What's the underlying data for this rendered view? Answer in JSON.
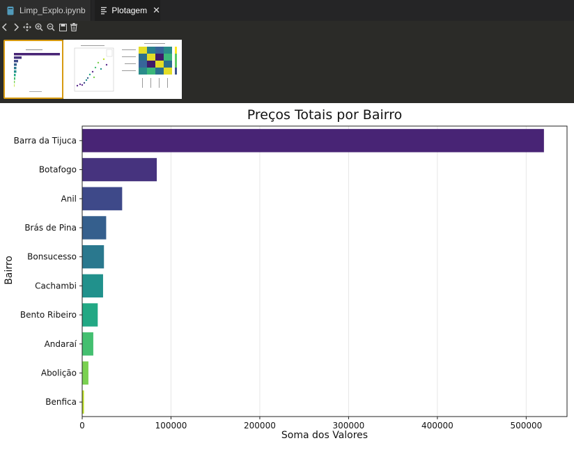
{
  "tabs": [
    {
      "label": "Limp_Explo.ipynb",
      "icon": "notebook-icon",
      "active": false
    },
    {
      "label": "Plotagem",
      "icon": "plot-file-icon",
      "active": true
    }
  ],
  "toolbar": {
    "buttons": [
      "back-icon",
      "forward-icon",
      "pan-icon",
      "zoom-in-icon",
      "zoom-out-icon",
      "save-icon",
      "trash-icon"
    ]
  },
  "thumbnails": [
    {
      "name": "thumb-bar-chart",
      "selected": true
    },
    {
      "name": "thumb-scatter-plot",
      "selected": false
    },
    {
      "name": "thumb-heatmap",
      "selected": false
    }
  ],
  "colors": {
    "selected_border": "#d79a10",
    "editor_bg": "#1e1e1e"
  },
  "chart_data": {
    "type": "bar",
    "orientation": "horizontal",
    "title": "Preços Totais por Bairro",
    "xlabel": "Soma dos Valores",
    "ylabel": "Bairro",
    "categories": [
      "Barra da Tijuca",
      "Botafogo",
      "Anil",
      "Brás de Pina",
      "Bonsucesso",
      "Cachambi",
      "Bento Ribeiro",
      "Andaraí",
      "Abolição",
      "Benfica"
    ],
    "values": [
      520000,
      84000,
      45000,
      27000,
      24500,
      23500,
      17500,
      12500,
      7000,
      2000
    ],
    "colors": [
      "#482475",
      "#46337e",
      "#3e4989",
      "#355f8d",
      "#2a788e",
      "#21918c",
      "#22a884",
      "#44bf70",
      "#7ad151",
      "#bddf26"
    ],
    "xticks": [
      "0",
      "100000",
      "200000",
      "300000",
      "400000",
      "500000"
    ],
    "xlim": [
      0,
      546000
    ],
    "grid": "x"
  }
}
